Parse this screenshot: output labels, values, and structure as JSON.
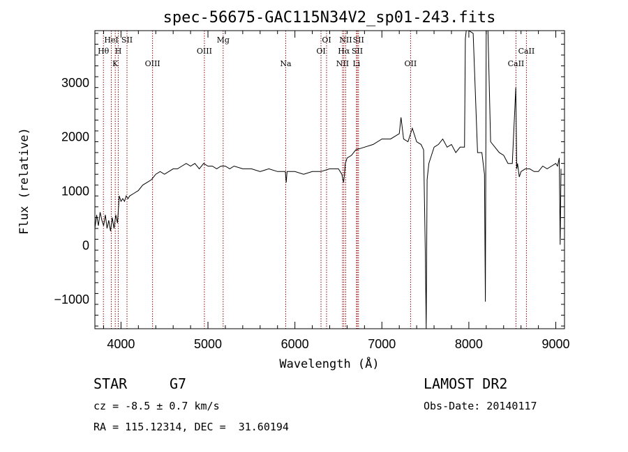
{
  "chart_data": {
    "type": "line",
    "title": "spec-56675-GAC115N34V2_sp01-243.fits",
    "xlabel": "Wavelength (Å)",
    "ylabel": "Flux (relative)",
    "xlim": [
      3700,
      9100
    ],
    "ylim": [
      -1550,
      3950
    ],
    "x_ticks": [
      4000,
      5000,
      6000,
      7000,
      8000,
      9000
    ],
    "y_ticks": [
      -1000,
      0,
      1000,
      2000,
      3000
    ],
    "grid": false,
    "series": [
      {
        "x": [
          3700,
          3720,
          3740,
          3760,
          3780,
          3800,
          3820,
          3840,
          3860,
          3880,
          3900,
          3920,
          3940,
          3960,
          3980,
          4000,
          4020,
          4040,
          4060,
          4080,
          4100,
          4150,
          4200,
          4250,
          4300,
          4350,
          4400,
          4450,
          4500,
          4550,
          4600,
          4650,
          4700,
          4750,
          4800,
          4850,
          4900,
          4950,
          5000,
          5050,
          5100,
          5150,
          5200,
          5250,
          5300,
          5400,
          5500,
          5600,
          5700,
          5800,
          5850,
          5890,
          5900,
          5910,
          5950,
          6000,
          6100,
          6200,
          6300,
          6400,
          6500,
          6540,
          6560,
          6570,
          6580,
          6600,
          6650,
          6700,
          6800,
          6900,
          7000,
          7100,
          7150,
          7200,
          7220,
          7250,
          7300,
          7350,
          7400,
          7450,
          7480,
          7500,
          7510,
          7520,
          7540,
          7560,
          7580,
          7600,
          7650,
          7700,
          7750,
          7800,
          7850,
          7900,
          7950,
          7960,
          7970,
          8000,
          8050,
          8100,
          8150,
          8180,
          8190,
          8200,
          8220,
          8250,
          8300,
          8350,
          8400,
          8450,
          8500,
          8540,
          8550,
          8560,
          8580,
          8600,
          8650,
          8700,
          8750,
          8800,
          8850,
          8900,
          8950,
          9000,
          9020,
          9040,
          9050,
          9060
        ],
        "y": [
          300,
          550,
          350,
          600,
          450,
          350,
          550,
          300,
          450,
          250,
          500,
          300,
          550,
          400,
          900,
          800,
          850,
          800,
          900,
          850,
          900,
          950,
          1000,
          1100,
          1150,
          1200,
          1300,
          1350,
          1300,
          1350,
          1400,
          1400,
          1450,
          1500,
          1450,
          1500,
          1400,
          1500,
          1450,
          1450,
          1400,
          1450,
          1450,
          1400,
          1450,
          1400,
          1400,
          1350,
          1400,
          1350,
          1350,
          1350,
          1150,
          1350,
          1350,
          1350,
          1300,
          1350,
          1350,
          1400,
          1400,
          1300,
          1150,
          1300,
          1500,
          1600,
          1650,
          1750,
          1800,
          1850,
          1950,
          1950,
          2000,
          2050,
          2350,
          1950,
          1900,
          2150,
          1900,
          1850,
          1750,
          -200,
          -1600,
          1200,
          1500,
          1600,
          1700,
          1800,
          1850,
          1950,
          1800,
          1850,
          1700,
          1800,
          1800,
          3800,
          3950,
          3950,
          3900,
          1700,
          1700,
          1300,
          -1050,
          3950,
          3950,
          1900,
          1800,
          1700,
          1650,
          1500,
          1500,
          2900,
          1400,
          1500,
          1250,
          1350,
          1400,
          1400,
          1350,
          1350,
          1450,
          1400,
          1450,
          1500,
          1450,
          1600,
          0,
          1400
        ]
      }
    ],
    "line_markers": [
      {
        "name": "Hθ",
        "x": 3798,
        "row": 2
      },
      {
        "name": "HeI",
        "x": 3889,
        "row": 1
      },
      {
        "name": "K",
        "x": 3934,
        "row": 3
      },
      {
        "name": "H",
        "x": 3969,
        "row": 2
      },
      {
        "name": "SII",
        "x": 4069,
        "row": 1
      },
      {
        "name": "OIII",
        "x": 4363,
        "row": 3
      },
      {
        "name": "OIII",
        "x": 4959,
        "row": 2
      },
      {
        "name": "Mg",
        "x": 5175,
        "row": 1
      },
      {
        "name": "Na",
        "x": 5894,
        "row": 3
      },
      {
        "name": "OI",
        "x": 6300,
        "row": 2
      },
      {
        "name": "OI",
        "x": 6364,
        "row": 1
      },
      {
        "name": "NII",
        "x": 6548,
        "row": 3
      },
      {
        "name": "Hα",
        "x": 6563,
        "row": 2
      },
      {
        "name": "NII",
        "x": 6584,
        "row": 1
      },
      {
        "name": "Li",
        "x": 6708,
        "row": 3
      },
      {
        "name": "SII",
        "x": 6717,
        "row": 2
      },
      {
        "name": "SII",
        "x": 6731,
        "row": 1
      },
      {
        "name": "OII",
        "x": 7330,
        "row": 3
      },
      {
        "name": "CaII",
        "x": 8542,
        "row": 3
      },
      {
        "name": "CaII",
        "x": 8662,
        "row": 2
      }
    ],
    "colors": {
      "spectrum": "#000000",
      "markers": "#8b0000",
      "axes": "#000000"
    }
  },
  "info": {
    "class": "STAR",
    "subclass": "G7",
    "cz": "cz = -8.5 ± 0.7 km/s",
    "coords": "RA = 115.12314, DEC =  31.60194",
    "survey": "LAMOST DR2",
    "obs_date": "Obs-Date: 20140117"
  }
}
